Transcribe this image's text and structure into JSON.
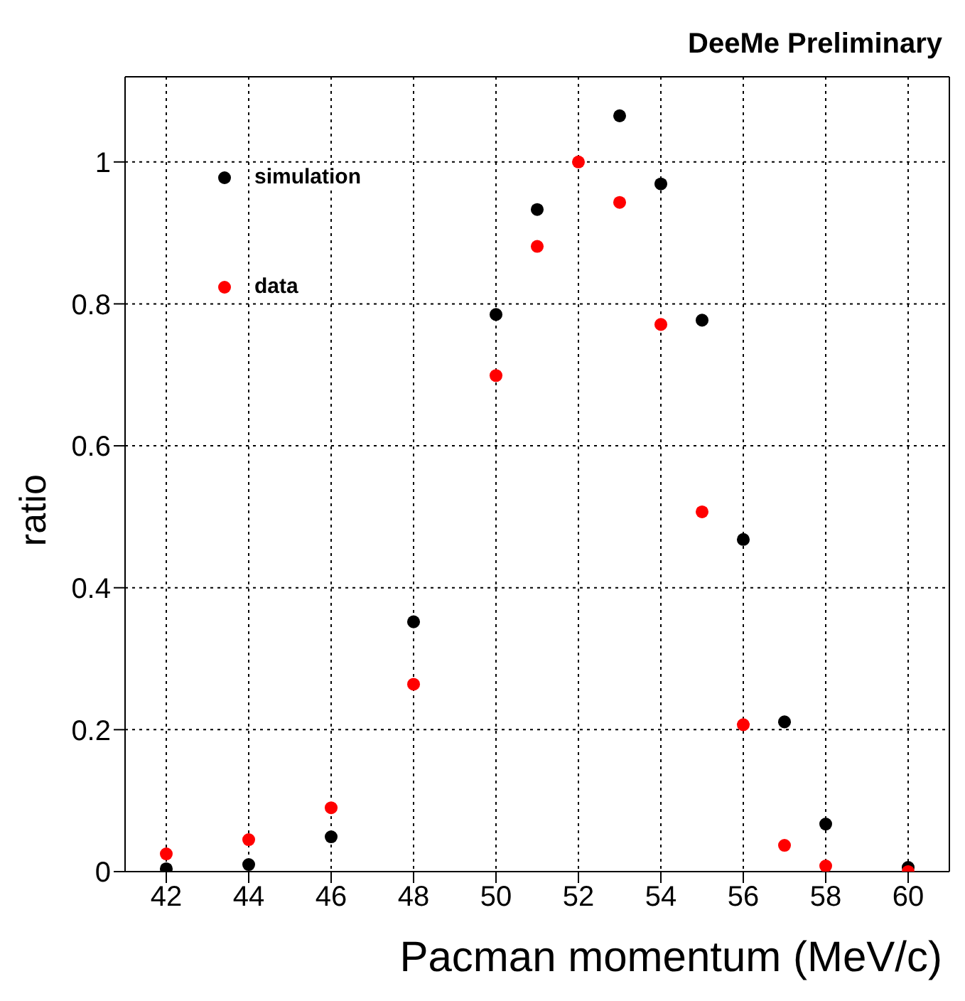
{
  "chart_data": {
    "type": "scatter",
    "title": "DeeMe Preliminary",
    "xlabel": "Pacman momentum (MeV/c)",
    "ylabel": "ratio",
    "xlim": [
      41,
      61
    ],
    "xticks": [
      42,
      44,
      46,
      48,
      50,
      52,
      54,
      56,
      58,
      60
    ],
    "ylim": [
      0,
      1.12
    ],
    "yticks": [
      0,
      0.2,
      0.4,
      0.6,
      0.8,
      1
    ],
    "grid": true,
    "legend": "top left",
    "marker": "circle",
    "series": [
      {
        "name": "simulation",
        "color": "#000000",
        "x": [
          42,
          44,
          46,
          48,
          50,
          51,
          53,
          54,
          55,
          56,
          57,
          58,
          60
        ],
        "values": [
          0.004,
          0.01,
          0.049,
          0.352,
          0.785,
          0.933,
          1.065,
          0.969,
          0.777,
          0.468,
          0.211,
          0.067,
          0.006
        ]
      },
      {
        "name": "data",
        "color": "#ff0000",
        "x": [
          42,
          44,
          46,
          48,
          50,
          51,
          52,
          53,
          54,
          55,
          56,
          57,
          58,
          60
        ],
        "values": [
          0.025,
          0.045,
          0.09,
          0.264,
          0.699,
          0.881,
          1.0,
          0.943,
          0.771,
          0.507,
          0.207,
          0.037,
          0.008,
          0.0
        ]
      }
    ]
  }
}
